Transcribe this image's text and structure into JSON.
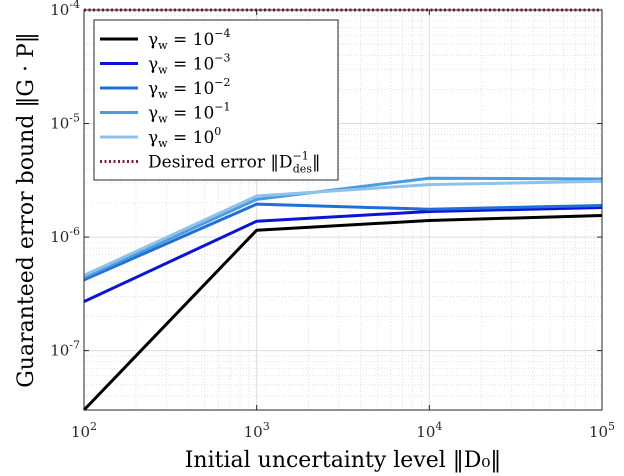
{
  "chart_data": {
    "type": "line",
    "xscale": "log",
    "yscale": "log",
    "xlim": [
      100,
      100000
    ],
    "ylim": [
      3e-08,
      0.0001
    ],
    "grid": true,
    "minor_grid": true,
    "xlabel": "Initial uncertainty level ‖D₀‖",
    "ylabel": "Guaranteed error bound ‖G · P‖",
    "x_ticks": [
      {
        "value": 100,
        "base": "10",
        "exp": "2"
      },
      {
        "value": 1000,
        "base": "10",
        "exp": "3"
      },
      {
        "value": 10000,
        "base": "10",
        "exp": "4"
      },
      {
        "value": 100000,
        "base": "10",
        "exp": "5"
      }
    ],
    "y_ticks": [
      {
        "value": 1e-07,
        "base": "10",
        "exp": "-7"
      },
      {
        "value": 1e-06,
        "base": "10",
        "exp": "-6"
      },
      {
        "value": 1e-05,
        "base": "10",
        "exp": "-5"
      },
      {
        "value": 0.0001,
        "base": "10",
        "exp": "-4"
      }
    ],
    "legend_position": "top-left",
    "x": [
      100,
      1000,
      10000,
      100000
    ],
    "series": [
      {
        "name": "γw = 10⁻⁴",
        "label_main": "γ",
        "label_sub": "w",
        "label_eq": " = 10",
        "label_exp": "−4",
        "color": "#000000",
        "style": "solid",
        "values": [
          3e-08,
          1.15e-06,
          1.4e-06,
          1.55e-06
        ]
      },
      {
        "name": "γw = 10⁻³",
        "label_main": "γ",
        "label_sub": "w",
        "label_eq": " = 10",
        "label_exp": "−3",
        "color": "#0a14d6",
        "style": "solid",
        "values": [
          2.7e-07,
          1.38e-06,
          1.68e-06,
          1.82e-06
        ]
      },
      {
        "name": "γw = 10⁻²",
        "label_main": "γ",
        "label_sub": "w",
        "label_eq": " = 10",
        "label_exp": "−2",
        "color": "#1f6fd6",
        "style": "solid",
        "values": [
          4.2e-07,
          1.95e-06,
          1.76e-06,
          1.9e-06
        ]
      },
      {
        "name": "γw = 10⁻¹",
        "label_main": "γ",
        "label_sub": "w",
        "label_eq": " = 10",
        "label_exp": "−1",
        "color": "#4b9be0",
        "style": "solid",
        "values": [
          4.4e-07,
          2.15e-06,
          3.3e-06,
          3.25e-06
        ]
      },
      {
        "name": "γw = 10⁰",
        "label_main": "γ",
        "label_sub": "w",
        "label_eq": " = 10",
        "label_exp": "0",
        "color": "#8fc2ea",
        "style": "solid",
        "values": [
          4.6e-07,
          2.3e-06,
          2.9e-06,
          3.1e-06
        ]
      },
      {
        "name": "Desired error ‖D⁻¹des‖",
        "label_main": "Desired error ‖D",
        "label_sub": "des",
        "label_eq": "‖",
        "label_exp": "−1",
        "color": "#8c1a3c",
        "style": "dotted",
        "values": [
          0.0001,
          0.0001,
          0.0001,
          0.0001
        ]
      }
    ]
  }
}
